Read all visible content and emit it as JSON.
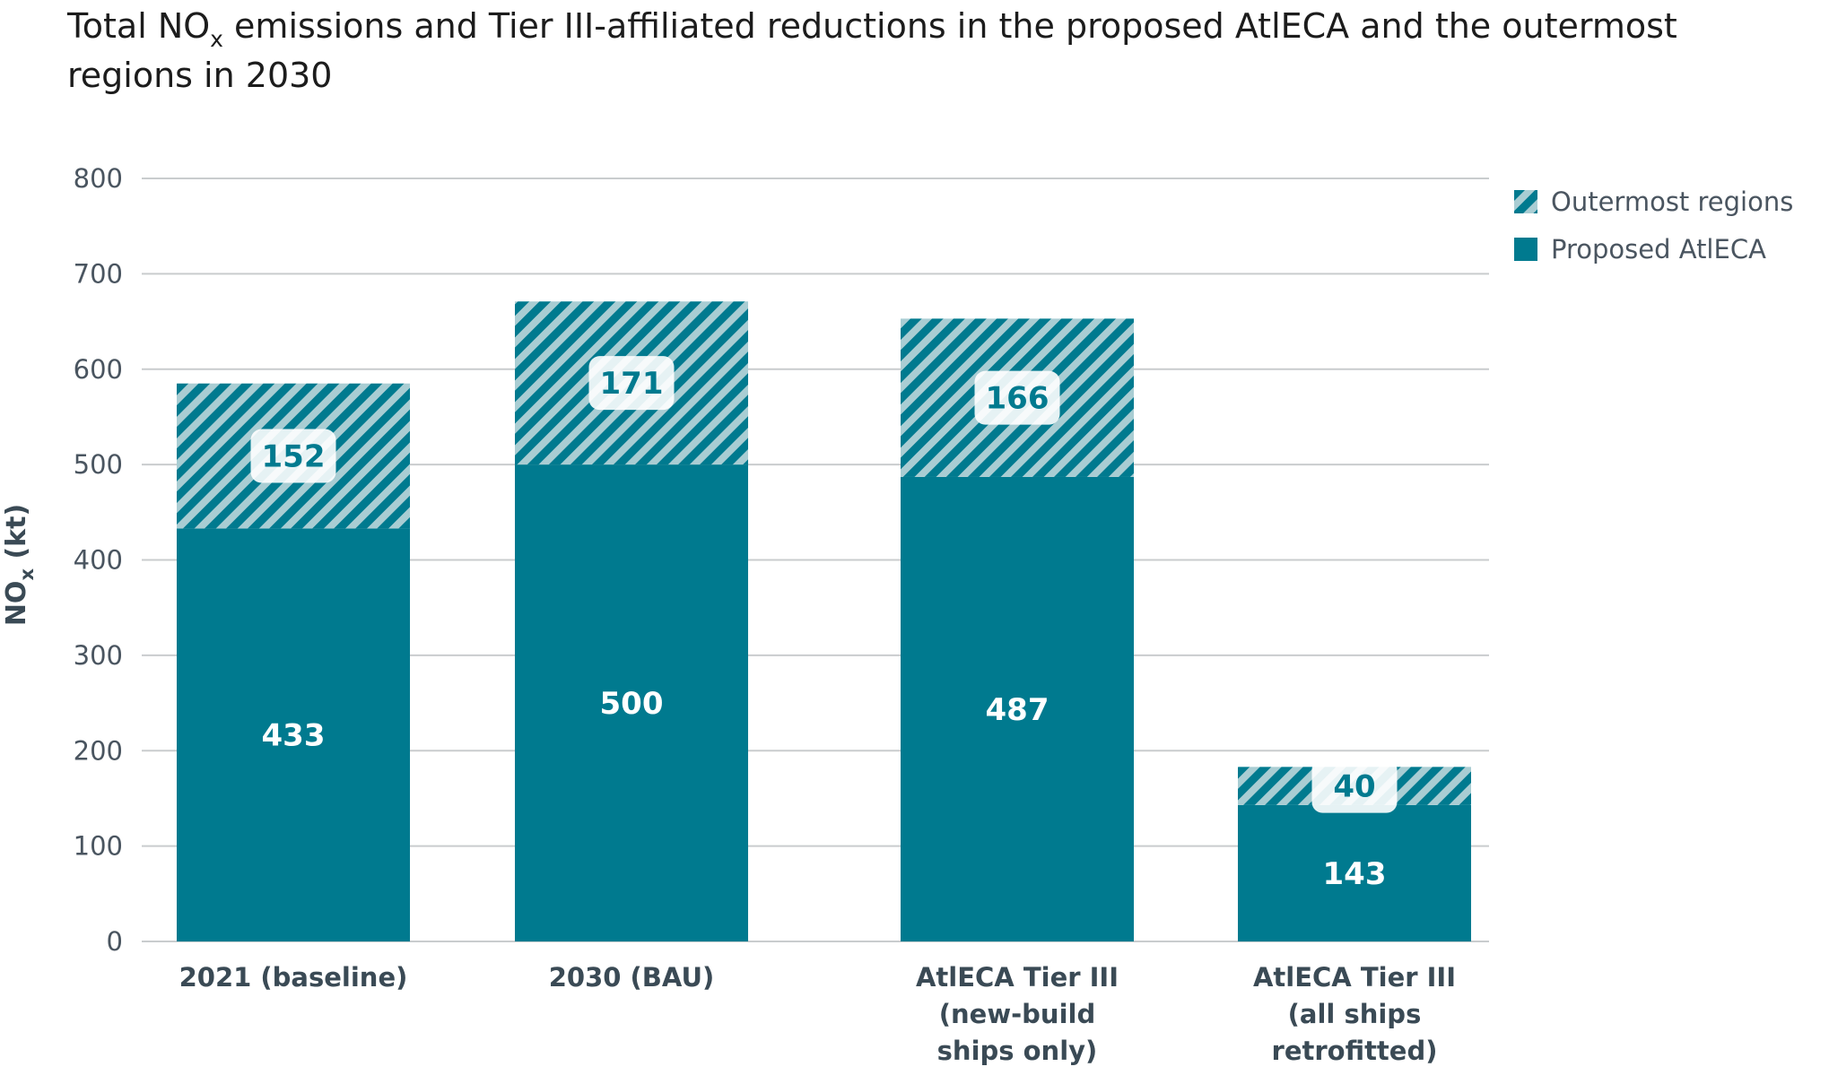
{
  "title_parts": {
    "before": "Total NO",
    "sub": "x",
    "after": " emissions and Tier III-affiliated reductions in the proposed AtlECA and the outermost regions in 2030"
  },
  "chart_data": {
    "type": "bar",
    "stacked": true,
    "categories": [
      [
        "2021 (baseline)"
      ],
      [
        "2030 (BAU)"
      ],
      [
        "AtlECA Tier III",
        "(new-build",
        "ships only)"
      ],
      [
        "AtlECA Tier III",
        "(all ships",
        "retrofitted)"
      ]
    ],
    "series": [
      {
        "name": "Proposed AtlECA",
        "values": [
          433,
          500,
          487,
          143
        ],
        "color": "#007a8f",
        "pattern": "solid"
      },
      {
        "name": "Outermost regions",
        "values": [
          152,
          171,
          166,
          40
        ],
        "color": "#007a8f",
        "pattern": "hatched"
      }
    ],
    "ylabel_main": "NO",
    "ylabel_sub": "x",
    "ylabel_unit": " (kt)",
    "ylim": [
      0,
      800
    ],
    "yticks": [
      0,
      100,
      200,
      300,
      400,
      500,
      600,
      700,
      800
    ],
    "grid": true,
    "legend": {
      "placement": "top-right",
      "order": [
        "Outermost regions",
        "Proposed AtlECA"
      ]
    }
  }
}
